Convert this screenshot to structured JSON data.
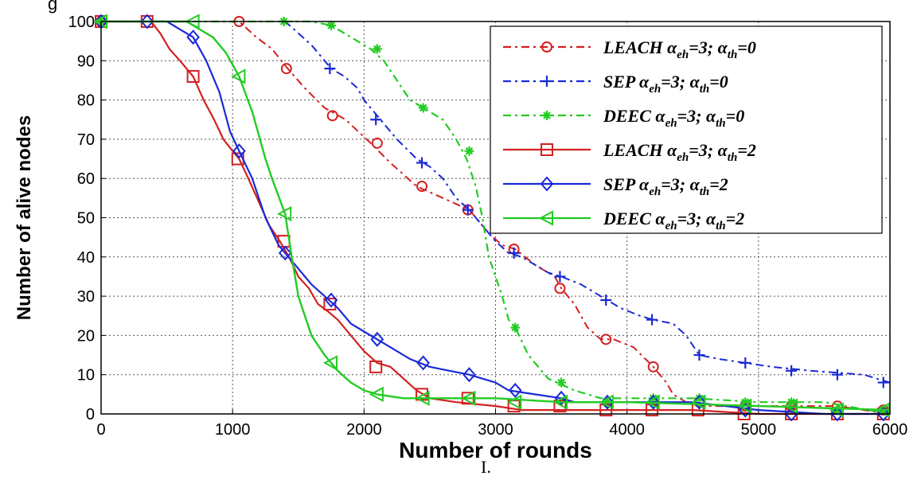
{
  "corner_text": "g",
  "caption": "I.",
  "chart_data": {
    "type": "line",
    "xlabel": "Number of rounds",
    "ylabel": "Number of alive nodes",
    "xlim": [
      0,
      6000
    ],
    "ylim": [
      0,
      100
    ],
    "xticks": [
      0,
      1000,
      2000,
      3000,
      4000,
      5000,
      6000
    ],
    "yticks": [
      0,
      10,
      20,
      30,
      40,
      50,
      60,
      70,
      80,
      90,
      100
    ],
    "grid": true,
    "legend_position": "top-right",
    "series": [
      {
        "name": "LEACH α_eh=3; α_th=0",
        "legend": {
          "base": "LEACH",
          "sub1": "eh",
          "mid": "=3; ",
          "sub2": "th",
          "tail": "=0"
        },
        "color": "#d42020",
        "dash": "10,5,3,5",
        "marker": "circle",
        "width": 2,
        "x": [
          0,
          1050,
          1180,
          1300,
          1420,
          1550,
          1700,
          1860,
          2050,
          2200,
          2400,
          2600,
          2800,
          2950,
          3050,
          3150,
          3300,
          3450,
          3500,
          3600,
          3700,
          3800,
          3900,
          4050,
          4200,
          4300,
          4350,
          4450,
          4600,
          5000,
          5400,
          5600,
          5800,
          6000
        ],
        "y": [
          100,
          100,
          96,
          93,
          88,
          83,
          78,
          75,
          69,
          64,
          58,
          55,
          52,
          46,
          43,
          42,
          38,
          35,
          32,
          28,
          22,
          19,
          19,
          17,
          12,
          8,
          5,
          3,
          2,
          2,
          2,
          2,
          1,
          0
        ],
        "mx": [
          0,
          1050,
          1410,
          1760,
          2100,
          2440,
          2790,
          3140,
          3490,
          3840,
          4200,
          4550,
          4900,
          5250,
          5600,
          5950
        ],
        "my": [
          100,
          100,
          88,
          76,
          69,
          58,
          52,
          42,
          32,
          19,
          12,
          3,
          2,
          2,
          2,
          1
        ]
      },
      {
        "name": "SEP α_eh=3; α_th=0",
        "legend": {
          "base": "SEP",
          "sub1": "eh",
          "mid": "=3; ",
          "sub2": "th",
          "tail": "=0"
        },
        "color": "#1a2ad6",
        "dash": "10,5,3,5",
        "marker": "plus",
        "width": 2,
        "x": [
          0,
          1400,
          1500,
          1600,
          1700,
          1750,
          1850,
          1950,
          2000,
          2100,
          2250,
          2400,
          2500,
          2600,
          2700,
          2800,
          2900,
          3000,
          3100,
          3200,
          3300,
          3400,
          3500,
          3650,
          3800,
          3950,
          4100,
          4200,
          4350,
          4450,
          4550,
          4700,
          4900,
          5100,
          5400,
          5800,
          6000
        ],
        "y": [
          100,
          100,
          97,
          94,
          90,
          88,
          86,
          83,
          80,
          76,
          70,
          65,
          63,
          60,
          55,
          52,
          48,
          44,
          41,
          40,
          38,
          36,
          35,
          33,
          30,
          27,
          25,
          24,
          23,
          20,
          15,
          14,
          13,
          12,
          11,
          10,
          8
        ],
        "mx": [
          0,
          1740,
          2090,
          2440,
          2790,
          3140,
          3490,
          3840,
          4190,
          4550,
          4900,
          5250,
          5600,
          5950
        ],
        "my": [
          100,
          88,
          75,
          64,
          52,
          41,
          35,
          29,
          24,
          15,
          13,
          11,
          10,
          8
        ]
      },
      {
        "name": "DEEC α_eh=3; α_th=0",
        "legend": {
          "base": "DEEC",
          "sub1": "eh",
          "mid": "=3; ",
          "sub2": "th",
          "tail": "=0"
        },
        "color": "#22cc22",
        "dash": "10,5,3,5",
        "marker": "star",
        "width": 2.2,
        "x": [
          0,
          1400,
          1600,
          1750,
          1900,
          2050,
          2150,
          2250,
          2350,
          2450,
          2600,
          2700,
          2780,
          2850,
          2900,
          2950,
          3000,
          3050,
          3100,
          3150,
          3250,
          3400,
          3600,
          3800,
          4500,
          5000,
          5500,
          6000
        ],
        "y": [
          100,
          100,
          100,
          99,
          96,
          93,
          90,
          85,
          80,
          78,
          75,
          70,
          65,
          58,
          50,
          40,
          35,
          30,
          24,
          22,
          15,
          9,
          6,
          4,
          4,
          3,
          3,
          0
        ],
        "mx": [
          0,
          1390,
          1750,
          2100,
          2450,
          2800,
          3150,
          3500,
          3850,
          4200,
          4550,
          4900,
          5250,
          5600,
          5950
        ],
        "my": [
          100,
          100,
          99,
          93,
          78,
          67,
          22,
          8,
          3,
          4,
          4,
          3,
          3,
          1,
          1
        ]
      },
      {
        "name": "LEACH α_eh=3; α_th=2",
        "legend": {
          "base": "LEACH",
          "sub1": "eh",
          "mid": "=3; ",
          "sub2": "th",
          "tail": "=2"
        },
        "color": "#d42020",
        "dash": "",
        "marker": "square",
        "width": 2.2,
        "x": [
          0,
          380,
          450,
          520,
          600,
          700,
          780,
          860,
          930,
          1000,
          1050,
          1120,
          1200,
          1280,
          1360,
          1430,
          1500,
          1580,
          1650,
          1730,
          1800,
          1900,
          2000,
          2100,
          2200,
          2300,
          2400,
          2500,
          2700,
          3000,
          3200,
          3500,
          3900,
          4500,
          5000,
          5500,
          6000
        ],
        "y": [
          100,
          100,
          97,
          93,
          90,
          86,
          80,
          75,
          70,
          67,
          65,
          60,
          54,
          48,
          44,
          40,
          35,
          32,
          28,
          26,
          24,
          20,
          16,
          13,
          12,
          9,
          6,
          4,
          3,
          2,
          1,
          1,
          1,
          1,
          0,
          0,
          0
        ],
        "mx": [
          0,
          350,
          700,
          1040,
          1390,
          1740,
          2090,
          2440,
          2790,
          3140,
          3490,
          3840,
          4190,
          4540,
          4890,
          5250,
          5600,
          5950
        ],
        "my": [
          100,
          100,
          86,
          65,
          44,
          28,
          12,
          5,
          4,
          2,
          2,
          1,
          1,
          1,
          0,
          0,
          0,
          0
        ]
      },
      {
        "name": "SEP α_eh=3; α_th=2",
        "legend": {
          "base": "SEP",
          "sub1": "eh",
          "mid": "=3; ",
          "sub2": "th",
          "tail": "=2"
        },
        "color": "#1a2ad6",
        "dash": "",
        "marker": "diamond",
        "width": 2.2,
        "x": [
          0,
          500,
          600,
          700,
          800,
          900,
          980,
          1050,
          1150,
          1250,
          1350,
          1400,
          1500,
          1600,
          1700,
          1800,
          1900,
          2000,
          2100,
          2200,
          2350,
          2500,
          2650,
          2800,
          3000,
          3100,
          3300,
          3500,
          3600,
          4000,
          4500,
          5000,
          5500,
          6000
        ],
        "y": [
          100,
          100,
          98,
          96,
          90,
          82,
          72,
          67,
          60,
          50,
          43,
          41,
          37,
          33,
          30,
          27,
          23,
          21,
          19,
          17,
          14,
          12,
          11,
          10,
          8,
          6,
          5,
          4,
          3,
          3,
          3,
          1,
          0,
          0
        ],
        "mx": [
          0,
          350,
          700,
          1050,
          1400,
          1750,
          2100,
          2450,
          2800,
          3150,
          3500,
          3850,
          4200,
          4550,
          4900,
          5250,
          5600,
          5950
        ],
        "my": [
          100,
          100,
          96,
          67,
          41,
          29,
          19,
          13,
          10,
          6,
          4,
          3,
          3,
          3,
          1,
          0,
          0,
          0
        ]
      },
      {
        "name": "DEEC α_eh=3; α_th=2",
        "legend": {
          "base": "DEEC",
          "sub1": "eh",
          "mid": "=3; ",
          "sub2": "th",
          "tail": "=2"
        },
        "color": "#22cc22",
        "dash": "",
        "marker": "triangle-left",
        "width": 2.4,
        "x": [
          0,
          650,
          750,
          850,
          950,
          1050,
          1150,
          1250,
          1300,
          1400,
          1450,
          1500,
          1550,
          1600,
          1700,
          1800,
          1900,
          2000,
          2100,
          2300,
          2500,
          3000,
          3500,
          4000,
          5000,
          6000
        ],
        "y": [
          100,
          100,
          98,
          96,
          92,
          86,
          77,
          65,
          60,
          51,
          40,
          30,
          25,
          20,
          15,
          11,
          8,
          6,
          5,
          4,
          4,
          4,
          3,
          3,
          2,
          1
        ],
        "mx": [
          0,
          700,
          1050,
          1400,
          1750,
          2100,
          2450,
          2800,
          3150,
          3500,
          3850,
          4200,
          4550,
          4900,
          5250,
          5600,
          5950
        ],
        "my": [
          100,
          100,
          86,
          51,
          13,
          5,
          4,
          4,
          3,
          3,
          3,
          3,
          3,
          2,
          2,
          1,
          1
        ]
      }
    ]
  }
}
